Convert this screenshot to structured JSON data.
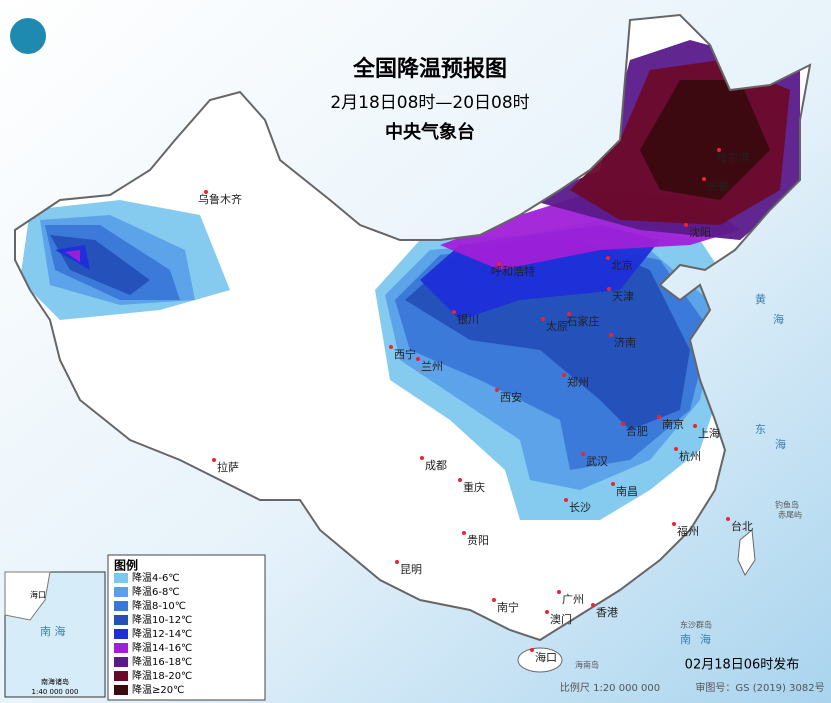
{
  "header": {
    "title": "全国降温预报图",
    "subtitle": "2月18日08时—20日08时",
    "issuer": "中央气象台"
  },
  "cities": [
    "乌鲁木齐",
    "呼和浩特",
    "北京",
    "天津",
    "石家庄",
    "太原",
    "银川",
    "西宁",
    "兰州",
    "济南",
    "郑州",
    "西安",
    "合肥",
    "南京",
    "上海",
    "武汉",
    "杭州",
    "拉萨",
    "成都",
    "重庆",
    "长沙",
    "南昌",
    "贵阳",
    "福州",
    "台北",
    "昆明",
    "南宁",
    "广州",
    "香港",
    "澳门",
    "海口",
    "哈尔滨",
    "长春",
    "沈阳"
  ],
  "seas": [
    "黄",
    "海",
    "东",
    "海",
    "南",
    "海"
  ],
  "islands": [
    "海南岛",
    "东沙群岛",
    "钓鱼岛",
    "赤尾屿"
  ],
  "legend": {
    "title": "图例",
    "items": [
      {
        "label": "降温4-6℃",
        "color": "#7ec8ee"
      },
      {
        "label": "降温6-8℃",
        "color": "#5aa0e8"
      },
      {
        "label": "降温8-10℃",
        "color": "#3a78d8"
      },
      {
        "label": "降温10-12℃",
        "color": "#2450b8"
      },
      {
        "label": "降温12-14℃",
        "color": "#1e2ed8"
      },
      {
        "label": "降温14-16℃",
        "color": "#a020d8"
      },
      {
        "label": "降温16-18℃",
        "color": "#5a1a8a"
      },
      {
        "label": "降温18-20℃",
        "color": "#6a0a2a"
      },
      {
        "label": "降温≥20℃",
        "color": "#3a0a10"
      }
    ]
  },
  "inset": {
    "sea": "南 海",
    "city": "海口",
    "islands": "南海诸岛",
    "scale": "1:40 000 000"
  },
  "footer": {
    "published": "02月18日06时发布",
    "scale": "比例尺 1:20 000 000",
    "map_number": "审图号：GS (2019) 3082号"
  }
}
